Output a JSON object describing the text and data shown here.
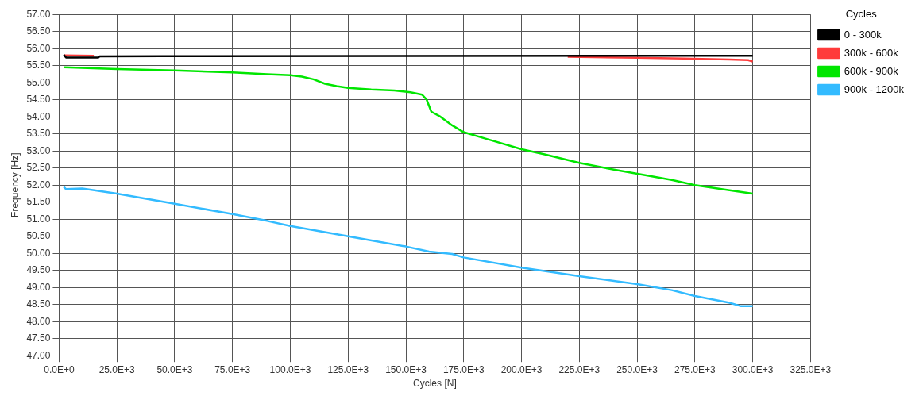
{
  "chart_data": {
    "type": "line",
    "xlabel": "Cycles [N]",
    "ylabel": "Frequency [Hz]",
    "legend_title": "Cycles",
    "legend": "right",
    "grid": true,
    "marker": "none",
    "line_style": "solid",
    "xlim": [
      0,
      325000
    ],
    "xticks": [
      {
        "value": 0,
        "label": "0.0E+0"
      },
      {
        "value": 25000,
        "label": "25.0E+3"
      },
      {
        "value": 50000,
        "label": "50.0E+3"
      },
      {
        "value": 75000,
        "label": "75.0E+3"
      },
      {
        "value": 100000,
        "label": "100.0E+3"
      },
      {
        "value": 125000,
        "label": "125.0E+3"
      },
      {
        "value": 150000,
        "label": "150.0E+3"
      },
      {
        "value": 175000,
        "label": "175.0E+3"
      },
      {
        "value": 200000,
        "label": "200.0E+3"
      },
      {
        "value": 225000,
        "label": "225.0E+3"
      },
      {
        "value": 250000,
        "label": "250.0E+3"
      },
      {
        "value": 275000,
        "label": "275.0E+3"
      },
      {
        "value": 300000,
        "label": "300.0E+3"
      },
      {
        "value": 325000,
        "label": "325.0E+3"
      }
    ],
    "ylim": [
      47,
      57
    ],
    "yticks": [
      {
        "value": 47,
        "label": "47.00"
      },
      {
        "value": 47.5,
        "label": "47.50"
      },
      {
        "value": 48,
        "label": "48.00"
      },
      {
        "value": 48.5,
        "label": "48.50"
      },
      {
        "value": 49,
        "label": "49.00"
      },
      {
        "value": 49.5,
        "label": "49.50"
      },
      {
        "value": 50,
        "label": "50.00"
      },
      {
        "value": 50.5,
        "label": "50.50"
      },
      {
        "value": 51,
        "label": "51.00"
      },
      {
        "value": 51.5,
        "label": "51.50"
      },
      {
        "value": 52,
        "label": "52.00"
      },
      {
        "value": 52.5,
        "label": "52.50"
      },
      {
        "value": 53,
        "label": "53.00"
      },
      {
        "value": 53.5,
        "label": "53.50"
      },
      {
        "value": 54,
        "label": "54.00"
      },
      {
        "value": 54.5,
        "label": "54.50"
      },
      {
        "value": 55,
        "label": "55.00"
      },
      {
        "value": 55.5,
        "label": "55.50"
      },
      {
        "value": 56,
        "label": "56.00"
      },
      {
        "value": 56.5,
        "label": "56.50"
      },
      {
        "value": 57,
        "label": "57.00"
      }
    ],
    "series": [
      {
        "name": "0 - 300k",
        "color": "#000000",
        "x": [
          2000,
          3000,
          17000,
          17500,
          45000,
          300000
        ],
        "values": [
          55.82,
          55.74,
          55.74,
          55.77,
          55.78,
          55.79
        ]
      },
      {
        "name": "300k - 600k",
        "color": "#ff3b3b",
        "x": [
          2000,
          15000,
          20000,
          220000,
          250000,
          270000,
          290000,
          298000,
          300000
        ],
        "values": [
          55.8,
          55.79,
          null,
          55.76,
          55.73,
          55.71,
          55.68,
          55.66,
          55.62
        ]
      },
      {
        "name": "600k - 900k",
        "color": "#00e600",
        "x": [
          2000,
          25000,
          50000,
          75000,
          90000,
          100000,
          105000,
          110000,
          115000,
          120000,
          125000,
          135000,
          145000,
          152000,
          157000,
          159000,
          161000,
          165000,
          170000,
          175000,
          185000,
          200000,
          210000,
          225000,
          240000,
          255000,
          265000,
          275000,
          290000,
          300000
        ],
        "values": [
          55.45,
          55.4,
          55.36,
          55.3,
          55.25,
          55.22,
          55.18,
          55.1,
          54.97,
          54.9,
          54.85,
          54.8,
          54.77,
          54.72,
          54.65,
          54.5,
          54.15,
          54.0,
          53.75,
          53.55,
          53.35,
          53.05,
          52.9,
          52.65,
          52.45,
          52.27,
          52.15,
          52.0,
          51.85,
          51.75
        ]
      },
      {
        "name": "900k - 1200k",
        "color": "#33bbff",
        "x": [
          2000,
          3000,
          10000,
          25000,
          50000,
          75000,
          90000,
          100000,
          125000,
          150000,
          160000,
          170000,
          175000,
          200000,
          225000,
          250000,
          265000,
          275000,
          290000,
          295000,
          300000
        ],
        "values": [
          51.95,
          51.88,
          51.9,
          51.75,
          51.45,
          51.15,
          50.95,
          50.8,
          50.5,
          50.2,
          50.05,
          49.98,
          49.88,
          49.58,
          49.33,
          49.1,
          48.92,
          48.75,
          48.55,
          48.45,
          48.45
        ]
      }
    ]
  }
}
